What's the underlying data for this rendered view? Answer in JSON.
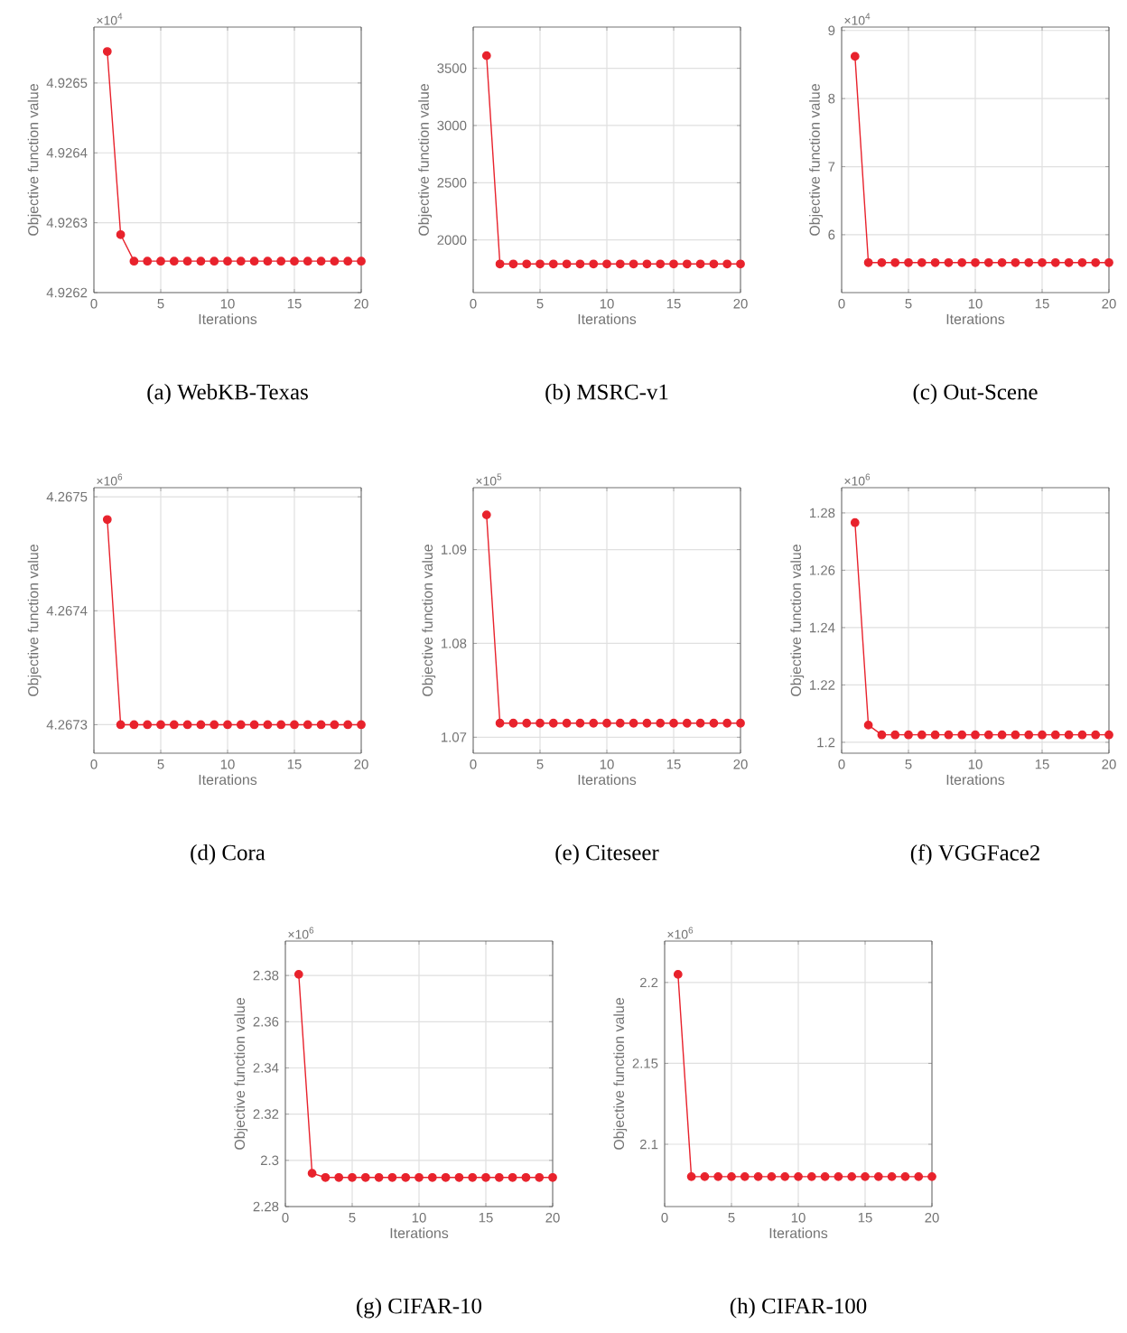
{
  "chart_data": [
    {
      "type": "line",
      "title": "(a) WebKB-Texas",
      "xlabel": "Iterations",
      "ylabel": "Objective function value",
      "annotations": [
        "×10$^{4}$"
      ],
      "xlim": [
        0,
        20
      ],
      "xticks": [
        0,
        5,
        10,
        15,
        20
      ],
      "ylim": [
        4.9262,
        4.92658
      ],
      "yticks": [
        4.9262,
        4.9263,
        4.9264,
        4.9265
      ],
      "grid": true,
      "marker": "circle",
      "line_style": "solid",
      "x": [
        1,
        2,
        3,
        4,
        5,
        6,
        7,
        8,
        9,
        10,
        11,
        12,
        13,
        14,
        15,
        16,
        17,
        18,
        19,
        20
      ],
      "series": [
        {
          "color": "#e8222c",
          "values": [
            4.926545,
            4.926283,
            4.926245,
            4.926245,
            4.926245,
            4.926245,
            4.926245,
            4.926245,
            4.926245,
            4.926245,
            4.926245,
            4.926245,
            4.926245,
            4.926245,
            4.926245,
            4.926245,
            4.926245,
            4.926245,
            4.926245,
            4.926245
          ]
        }
      ]
    },
    {
      "type": "line",
      "title": "(b) MSRC-v1",
      "xlabel": "Iterations",
      "ylabel": "Objective function value",
      "xlim": [
        0,
        20
      ],
      "xticks": [
        0,
        5,
        10,
        15,
        20
      ],
      "ylim": [
        1540,
        3860
      ],
      "yticks": [
        2000,
        2500,
        3000,
        3500
      ],
      "grid": true,
      "marker": "circle",
      "line_style": "solid",
      "x": [
        1,
        2,
        3,
        4,
        5,
        6,
        7,
        8,
        9,
        10,
        11,
        12,
        13,
        14,
        15,
        16,
        17,
        18,
        19,
        20
      ],
      "series": [
        {
          "color": "#e8222c",
          "values": [
            3610,
            1790,
            1790,
            1790,
            1790,
            1790,
            1790,
            1790,
            1790,
            1790,
            1790,
            1790,
            1790,
            1790,
            1790,
            1790,
            1790,
            1790,
            1790,
            1790
          ]
        }
      ]
    },
    {
      "type": "line",
      "title": "(c) Out-Scene",
      "xlabel": "Iterations",
      "ylabel": "Objective function value",
      "annotations": [
        "×10$^{4}$"
      ],
      "xlim": [
        0,
        20
      ],
      "xticks": [
        0,
        5,
        10,
        15,
        20
      ],
      "ylim": [
        5.15,
        9.05
      ],
      "yticks": [
        6,
        7,
        8,
        9
      ],
      "grid": true,
      "marker": "circle",
      "line_style": "solid",
      "x": [
        1,
        2,
        3,
        4,
        5,
        6,
        7,
        8,
        9,
        10,
        11,
        12,
        13,
        14,
        15,
        16,
        17,
        18,
        19,
        20
      ],
      "series": [
        {
          "color": "#e8222c",
          "values": [
            8.62,
            5.59,
            5.59,
            5.59,
            5.59,
            5.59,
            5.59,
            5.59,
            5.59,
            5.59,
            5.59,
            5.59,
            5.59,
            5.59,
            5.59,
            5.59,
            5.59,
            5.59,
            5.59,
            5.59
          ]
        }
      ]
    },
    {
      "type": "line",
      "title": "(d) Cora",
      "xlabel": "Iterations",
      "ylabel": "Objective function value",
      "annotations": [
        "×10$^{6}$"
      ],
      "xlim": [
        0,
        20
      ],
      "xticks": [
        0,
        5,
        10,
        15,
        20
      ],
      "ylim": [
        4.267275,
        4.267508
      ],
      "yticks": [
        4.2673,
        4.2674,
        4.2675
      ],
      "grid": true,
      "marker": "circle",
      "line_style": "solid",
      "x": [
        1,
        2,
        3,
        4,
        5,
        6,
        7,
        8,
        9,
        10,
        11,
        12,
        13,
        14,
        15,
        16,
        17,
        18,
        19,
        20
      ],
      "series": [
        {
          "color": "#e8222c",
          "values": [
            4.26748,
            4.2673,
            4.2673,
            4.2673,
            4.2673,
            4.2673,
            4.2673,
            4.2673,
            4.2673,
            4.2673,
            4.2673,
            4.2673,
            4.2673,
            4.2673,
            4.2673,
            4.2673,
            4.2673,
            4.2673,
            4.2673,
            4.2673
          ]
        }
      ]
    },
    {
      "type": "line",
      "title": "(e) Citeseer",
      "xlabel": "Iterations",
      "ylabel": "Objective function value",
      "annotations": [
        "×10$^{5}$"
      ],
      "xlim": [
        0,
        20
      ],
      "xticks": [
        0,
        5,
        10,
        15,
        20
      ],
      "ylim": [
        1.0683,
        1.0966
      ],
      "yticks": [
        1.07,
        1.08,
        1.09
      ],
      "grid": true,
      "marker": "circle",
      "line_style": "solid",
      "x": [
        1,
        2,
        3,
        4,
        5,
        6,
        7,
        8,
        9,
        10,
        11,
        12,
        13,
        14,
        15,
        16,
        17,
        18,
        19,
        20
      ],
      "series": [
        {
          "color": "#e8222c",
          "values": [
            1.0937,
            1.0715,
            1.0715,
            1.0715,
            1.0715,
            1.0715,
            1.0715,
            1.0715,
            1.0715,
            1.0715,
            1.0715,
            1.0715,
            1.0715,
            1.0715,
            1.0715,
            1.0715,
            1.0715,
            1.0715,
            1.0715,
            1.0715
          ]
        }
      ]
    },
    {
      "type": "line",
      "title": "(f) VGGFace2",
      "xlabel": "Iterations",
      "ylabel": "Objective function value",
      "annotations": [
        "×10$^{6}$"
      ],
      "xlim": [
        0,
        20
      ],
      "xticks": [
        0,
        5,
        10,
        15,
        20
      ],
      "ylim": [
        1.1962,
        1.2888
      ],
      "yticks": [
        1.2,
        1.22,
        1.24,
        1.26,
        1.28
      ],
      "grid": true,
      "marker": "circle",
      "line_style": "solid",
      "x": [
        1,
        2,
        3,
        4,
        5,
        6,
        7,
        8,
        9,
        10,
        11,
        12,
        13,
        14,
        15,
        16,
        17,
        18,
        19,
        20
      ],
      "series": [
        {
          "color": "#e8222c",
          "values": [
            1.2766,
            1.206,
            1.2026,
            1.2026,
            1.2026,
            1.2026,
            1.2026,
            1.2026,
            1.2026,
            1.2026,
            1.2026,
            1.2026,
            1.2026,
            1.2026,
            1.2026,
            1.2026,
            1.2026,
            1.2026,
            1.2026,
            1.2026
          ]
        }
      ]
    },
    {
      "type": "line",
      "title": "(g) CIFAR-10",
      "xlabel": "Iterations",
      "ylabel": "Objective function value",
      "annotations": [
        "×10$^{6}$"
      ],
      "xlim": [
        0,
        20
      ],
      "xticks": [
        0,
        5,
        10,
        15,
        20
      ],
      "ylim": [
        2.28,
        2.3949
      ],
      "yticks": [
        2.28,
        2.3,
        2.32,
        2.34,
        2.36,
        2.38
      ],
      "grid": true,
      "marker": "circle",
      "line_style": "solid",
      "x": [
        1,
        2,
        3,
        4,
        5,
        6,
        7,
        8,
        9,
        10,
        11,
        12,
        13,
        14,
        15,
        16,
        17,
        18,
        19,
        20
      ],
      "series": [
        {
          "color": "#e8222c",
          "values": [
            2.3805,
            2.2944,
            2.2926,
            2.2926,
            2.2926,
            2.2926,
            2.2926,
            2.2926,
            2.2926,
            2.2926,
            2.2926,
            2.2926,
            2.2926,
            2.2926,
            2.2926,
            2.2926,
            2.2926,
            2.2926,
            2.2926,
            2.2926
          ]
        }
      ]
    },
    {
      "type": "line",
      "title": "(h) CIFAR-100",
      "xlabel": "Iterations",
      "ylabel": "Objective function value",
      "annotations": [
        "×10$^{6}$"
      ],
      "xlim": [
        0,
        20
      ],
      "xticks": [
        0,
        5,
        10,
        15,
        20
      ],
      "ylim": [
        2.0615,
        2.2256
      ],
      "yticks": [
        2.1,
        2.15,
        2.2
      ],
      "grid": true,
      "marker": "circle",
      "line_style": "solid",
      "x": [
        1,
        2,
        3,
        4,
        5,
        6,
        7,
        8,
        9,
        10,
        11,
        12,
        13,
        14,
        15,
        16,
        17,
        18,
        19,
        20
      ],
      "series": [
        {
          "color": "#e8222c",
          "values": [
            2.205,
            2.08,
            2.08,
            2.08,
            2.08,
            2.08,
            2.08,
            2.08,
            2.08,
            2.08,
            2.08,
            2.08,
            2.08,
            2.08,
            2.08,
            2.08,
            2.08,
            2.08,
            2.08,
            2.08
          ]
        }
      ]
    }
  ]
}
